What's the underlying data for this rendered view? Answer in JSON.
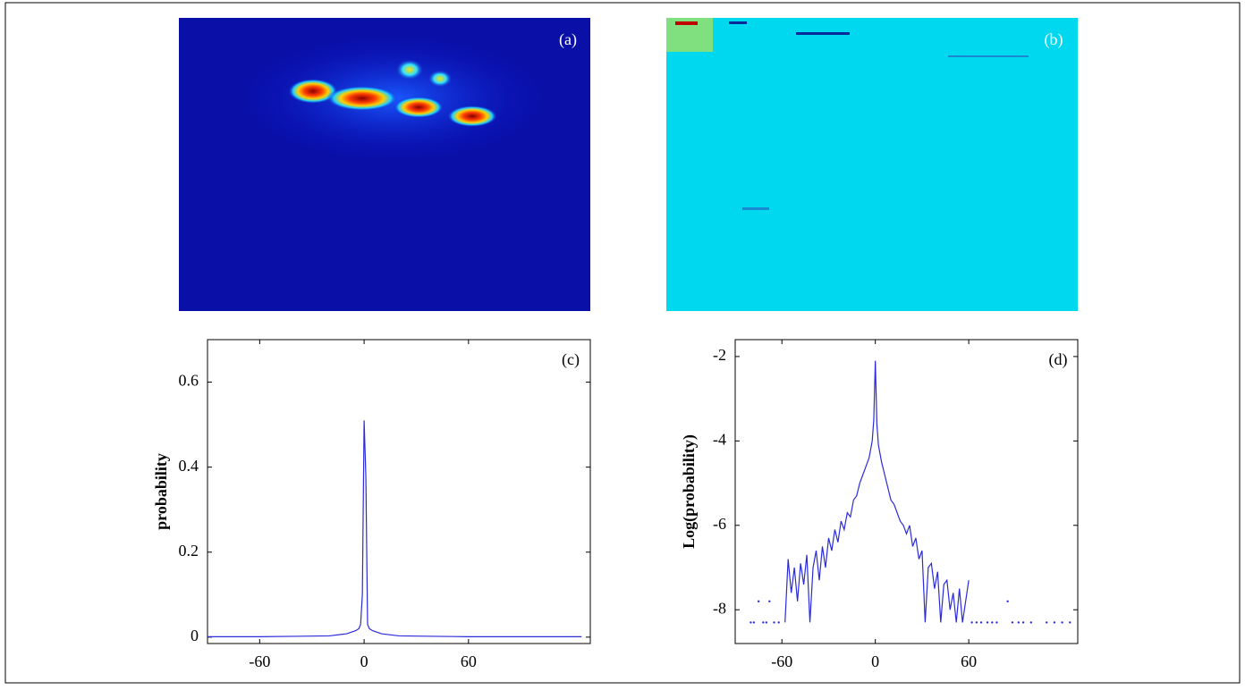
{
  "chart_data": [
    {
      "type": "image",
      "label": "(a)",
      "colormap": "jet-dark"
    },
    {
      "type": "image",
      "label": "(b)",
      "colormap": "jet-cyan"
    },
    {
      "type": "line",
      "label": "(c)",
      "ylabel": "probability",
      "xlim": [
        -90,
        130
      ],
      "xticks": [
        -60,
        0,
        60
      ],
      "ylim": [
        -0.015,
        0.7
      ],
      "yticks": [
        0,
        0.2,
        0.4,
        0.6
      ],
      "series": [
        {
          "color": "#2b2bd9",
          "x": [
            -90,
            -60,
            -40,
            -20,
            -10,
            -5,
            -3,
            -2,
            -1,
            0,
            1,
            2,
            3,
            5,
            10,
            20,
            40,
            60,
            90,
            125
          ],
          "values": [
            0.001,
            0.001,
            0.002,
            0.003,
            0.008,
            0.015,
            0.02,
            0.03,
            0.1,
            0.51,
            0.38,
            0.03,
            0.02,
            0.015,
            0.008,
            0.003,
            0.002,
            0.001,
            0.001,
            0.001
          ],
          "style": "line"
        }
      ]
    },
    {
      "type": "line",
      "label": "(d)",
      "ylabel": "Log(probability)",
      "xlim": [
        -90,
        130
      ],
      "xticks": [
        -60,
        0,
        60
      ],
      "ylim": [
        -8.8,
        -1.6
      ],
      "yticks": [
        -8,
        -6,
        -4,
        -2
      ],
      "series": [
        {
          "color": "#2b2bd9",
          "x": [
            -58,
            -56,
            -54,
            -52,
            -50,
            -48,
            -46,
            -44,
            -42,
            -40,
            -38,
            -36,
            -34,
            -32,
            -30,
            -28,
            -26,
            -24,
            -22,
            -20,
            -18,
            -16,
            -14,
            -12,
            -10,
            -8,
            -6,
            -4,
            -2,
            -1,
            0,
            1,
            2,
            4,
            6,
            8,
            10,
            12,
            14,
            16,
            18,
            20,
            22,
            24,
            26,
            28,
            30,
            32,
            34,
            36,
            38,
            40,
            42,
            44,
            46,
            48,
            50,
            52,
            54,
            56,
            58,
            60
          ],
          "values": [
            -8.3,
            -6.8,
            -7.6,
            -7.0,
            -7.8,
            -6.9,
            -7.4,
            -6.7,
            -8.3,
            -7.0,
            -6.6,
            -7.3,
            -6.5,
            -7.0,
            -6.3,
            -6.6,
            -6.1,
            -6.4,
            -5.9,
            -6.1,
            -5.7,
            -5.8,
            -5.4,
            -5.3,
            -5.0,
            -4.8,
            -4.6,
            -4.4,
            -4.0,
            -3.5,
            -2.1,
            -3.6,
            -4.1,
            -4.5,
            -4.8,
            -5.1,
            -5.4,
            -5.5,
            -5.7,
            -5.9,
            -6.0,
            -6.2,
            -6.0,
            -6.5,
            -6.3,
            -6.8,
            -6.6,
            -8.3,
            -7.0,
            -6.9,
            -7.5,
            -7.1,
            -8.3,
            -7.4,
            -7.3,
            -8.0,
            -7.6,
            -8.3,
            -7.5,
            -8.3,
            -7.8,
            -7.3
          ],
          "style": "line"
        },
        {
          "color": "#2b2bd9",
          "x": [
            -80,
            -78,
            -75,
            -72,
            -70,
            -68,
            -65,
            -62,
            62,
            65,
            68,
            72,
            75,
            78,
            85,
            88,
            92,
            95,
            100,
            110,
            115,
            120,
            125
          ],
          "values": [
            -8.3,
            -8.3,
            -7.8,
            -8.3,
            -8.3,
            -7.8,
            -8.3,
            -8.3,
            -8.3,
            -8.3,
            -8.3,
            -8.3,
            -8.3,
            -8.3,
            -7.8,
            -8.3,
            -8.3,
            -8.3,
            -8.3,
            -8.3,
            -8.3,
            -8.3,
            -8.3
          ],
          "style": "dots"
        }
      ]
    }
  ]
}
